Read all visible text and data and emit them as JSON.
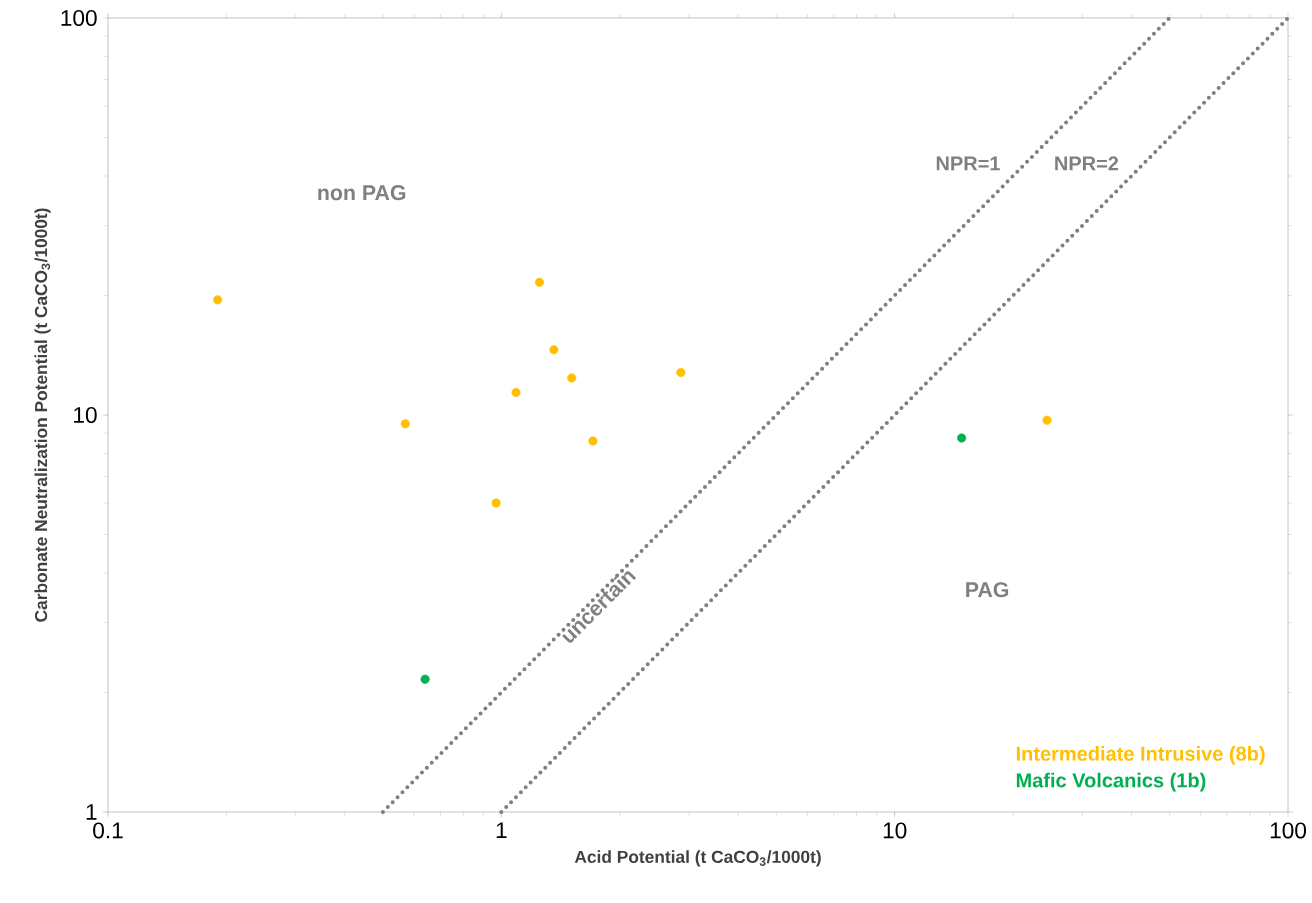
{
  "chart_data": {
    "type": "scatter",
    "xlabel": "Acid Potential (t CaCO$_{3}$/1000t)",
    "ylabel": "Carbonate Neutralization Potential (t CaCO$_{3}$/1000t)",
    "log": "xy",
    "xlim": [
      0.1,
      100
    ],
    "ylim": [
      1,
      100
    ],
    "xticks": [
      0.1,
      1,
      10,
      100
    ],
    "yticks": [
      1,
      10,
      100
    ],
    "grid": false,
    "legend": "bottom right",
    "marker": "circle",
    "annotations": [
      "non PAG",
      "uncertain",
      "PAG"
    ],
    "series": [
      {
        "name": "Intermediate Intrusive (8b)",
        "color": "#ffc000",
        "x": [
          0.19,
          1.25,
          1.36,
          1.51,
          1.09,
          2.86,
          0.57,
          1.71,
          0.97,
          24.4
        ],
        "values": [
          19.5,
          21.6,
          14.6,
          12.4,
          11.4,
          12.8,
          9.5,
          8.6,
          6.0,
          9.7
        ]
      },
      {
        "name": "Mafic Volcanics (1b)",
        "color": "#00b050",
        "x": [
          14.8,
          0.64
        ],
        "values": [
          8.75,
          2.16
        ]
      },
      {
        "name": "NPR=1",
        "type": "line",
        "marker": "none",
        "line_style": "dotted",
        "color": "#7f7f7f",
        "x": [
          0.5,
          50
        ],
        "values": [
          1,
          100
        ]
      },
      {
        "name": "NPR=2",
        "type": "line",
        "marker": "none",
        "line_style": "dotted",
        "color": "#7f7f7f",
        "x": [
          1,
          100
        ],
        "values": [
          1,
          100
        ]
      }
    ]
  }
}
